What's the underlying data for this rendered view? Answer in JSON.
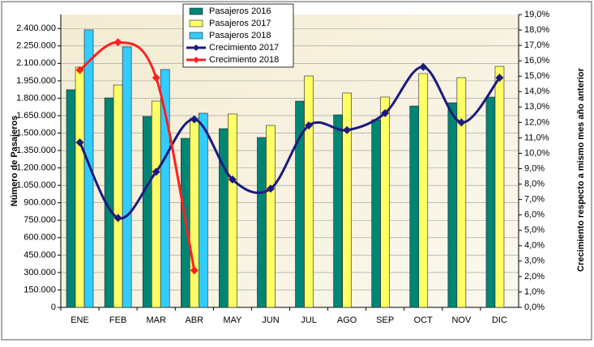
{
  "chart_data": {
    "type": "bar_line",
    "y_label": "Número de Pasajeros",
    "y2_label": "Crecimiento respecto a mismo mes año anterior",
    "categories": [
      "ENE",
      "FEB",
      "MAR",
      "ABR",
      "MAY",
      "JUN",
      "JUL",
      "AGO",
      "SEP",
      "OCT",
      "NOV",
      "DIC"
    ],
    "series": [
      {
        "name": "Pasajeros 2016",
        "kind": "bar",
        "color": "#008575",
        "values": [
          1873000,
          1803000,
          1643000,
          1455000,
          1538000,
          1462000,
          1775000,
          1657000,
          1615000,
          1733000,
          1761000,
          1810000
        ]
      },
      {
        "name": "Pasajeros 2017",
        "kind": "bar",
        "color": "#ffff66",
        "values": [
          2067000,
          1914000,
          1775000,
          1629000,
          1664000,
          1566000,
          1991000,
          1845000,
          1810000,
          2012000,
          1977000,
          2074000
        ]
      },
      {
        "name": "Pasajeros 2018",
        "kind": "bar",
        "color": "#33ccff",
        "values": [
          2388000,
          2242000,
          2047000,
          1671000,
          null,
          null,
          null,
          null,
          null,
          null,
          null,
          null
        ]
      },
      {
        "name": "Crecimiento 2017",
        "kind": "line",
        "axis": "y2",
        "color": "#1a1a80",
        "values": [
          10.7,
          5.8,
          8.8,
          12.2,
          8.3,
          7.7,
          11.8,
          11.5,
          12.6,
          15.6,
          12.0,
          14.9
        ]
      },
      {
        "name": "Crecimiento 2018",
        "kind": "line",
        "axis": "y2",
        "color": "#ff2020",
        "values": [
          15.4,
          17.2,
          14.9,
          2.4,
          null,
          null,
          null,
          null,
          null,
          null,
          null,
          null
        ]
      }
    ],
    "ylim": [
      0,
      2520000
    ],
    "yticks": [
      0,
      {
        "value": 150000,
        "label": "150.000"
      },
      {
        "value": 300000,
        "label": "300.000"
      },
      {
        "value": 450000,
        "label": "450.000"
      },
      {
        "value": 600000,
        "label": "600.000"
      },
      {
        "value": 750000,
        "label": "750.000"
      },
      {
        "value": 900000,
        "label": "900.000"
      },
      {
        "value": 1050000,
        "label": "1.050.000"
      },
      {
        "value": 1200000,
        "label": "1.200.000"
      },
      {
        "value": 1350000,
        "label": "1.350.000"
      },
      {
        "value": 1500000,
        "label": "1.500.000"
      },
      {
        "value": 1650000,
        "label": "1.650.000"
      },
      {
        "value": 1800000,
        "label": "1.800.000"
      },
      {
        "value": 1950000,
        "label": "1.950.000"
      },
      {
        "value": 2100000,
        "label": "2.100.000"
      },
      {
        "value": 2250000,
        "label": "2.250.000"
      },
      {
        "value": 2400000,
        "label": "2.400.000"
      }
    ],
    "y2lim": [
      0,
      19
    ],
    "y2ticks": [
      {
        "value": 0,
        "label": "0,0%"
      },
      {
        "value": 1,
        "label": "1,0%"
      },
      {
        "value": 2,
        "label": "2,0%"
      },
      {
        "value": 3,
        "label": "3,0%"
      },
      {
        "value": 4,
        "label": "4,0%"
      },
      {
        "value": 5,
        "label": "5,0%"
      },
      {
        "value": 6,
        "label": "6,0%"
      },
      {
        "value": 7,
        "label": "7,0%"
      },
      {
        "value": 8,
        "label": "8,0%"
      },
      {
        "value": 9,
        "label": "9,0%"
      },
      {
        "value": 10,
        "label": "10,0%"
      },
      {
        "value": 11,
        "label": "11,0%"
      },
      {
        "value": 12,
        "label": "12,0%"
      },
      {
        "value": 13,
        "label": "13,0%"
      },
      {
        "value": 14,
        "label": "14,0%"
      },
      {
        "value": 15,
        "label": "15,0%"
      },
      {
        "value": 16,
        "label": "16,0%"
      },
      {
        "value": 17,
        "label": "17,0%"
      },
      {
        "value": 18,
        "label": "18,0%"
      },
      {
        "value": 19,
        "label": "19,0%"
      }
    ],
    "grid": true
  }
}
